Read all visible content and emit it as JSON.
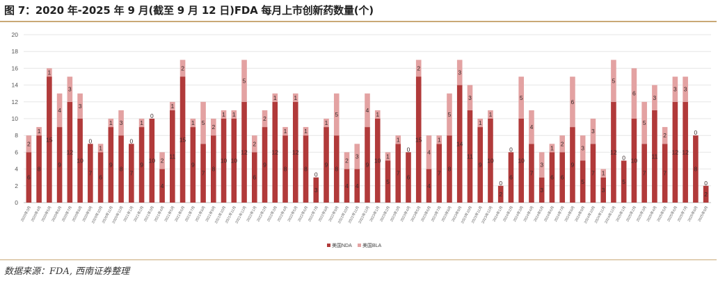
{
  "title": "图 7：2020 年-2025 年 9 月(截至 9 月 12 日)FDA 每月上市创新药数量(个)",
  "source": "数据来源：FDA, 西南证券整理",
  "colors": {
    "nda": "#b13a3a",
    "bla": "#e3a2a2",
    "accent_line": "#c9a876"
  },
  "chart_data": {
    "type": "bar",
    "stacked": true,
    "title": "",
    "xlabel": "",
    "ylabel": "",
    "ylim": [
      0,
      20
    ],
    "yticks": [
      0,
      2,
      4,
      6,
      8,
      10,
      12,
      14,
      16,
      18,
      20
    ],
    "grid": true,
    "legend_position": "bottom",
    "categories": [
      "2020年3月",
      "2020年4月",
      "2020年5月",
      "2020年6月",
      "2020年7月",
      "2020年8月",
      "2020年9月",
      "2020年10月",
      "2020年11月",
      "2020年12月",
      "2021年1月",
      "2021年2月",
      "2021年3月",
      "2021年4月",
      "2021年5月",
      "2021年6月",
      "2021年7月",
      "2021年8月",
      "2021年9月",
      "2021年10月",
      "2021年11月",
      "2021年12月",
      "2022年1月",
      "2022年2月",
      "2022年3月",
      "2022年4月",
      "2022年5月",
      "2022年6月",
      "2022年7月",
      "2022年8月",
      "2022年9月",
      "2022年10月",
      "2022年11月",
      "2022年12月",
      "2023年1月",
      "2023年2月",
      "2023年3月",
      "2023年4月",
      "2023年5月",
      "2023年6月",
      "2023年7月",
      "2023年8月",
      "2023年9月",
      "2023年10月",
      "2023年11月",
      "2023年12月",
      "2024年1月",
      "2024年2月",
      "2024年3月",
      "2024年4月",
      "2024年5月",
      "2024年6月",
      "2024年7月",
      "2024年8月",
      "2024年9月",
      "2024年10月",
      "2024年11月",
      "2024年12月",
      "2025年1月",
      "2025年2月",
      "2025年3月",
      "2025年4月",
      "2025年5月",
      "2025年6月",
      "2025年7月",
      "2025年8月",
      "2025年9月"
    ],
    "series": [
      {
        "name": "美国NDA",
        "color": "#b13a3a",
        "values": [
          6,
          8,
          15,
          9,
          12,
          10,
          7,
          6,
          9,
          8,
          7,
          9,
          10,
          4,
          11,
          15,
          9,
          7,
          8,
          10,
          10,
          12,
          6,
          9,
          12,
          8,
          12,
          8,
          3,
          9,
          8,
          4,
          4,
          9,
          10,
          5,
          7,
          6,
          15,
          4,
          7,
          8,
          14,
          11,
          9,
          10,
          2,
          6,
          10,
          7,
          3,
          6,
          6,
          9,
          5,
          7,
          3,
          12,
          5,
          10,
          7,
          11,
          7,
          12,
          12,
          8,
          2
        ]
      },
      {
        "name": "美国BLA",
        "color": "#e3a2a2",
        "values": [
          2,
          1,
          1,
          4,
          3,
          3,
          0,
          1,
          1,
          3,
          0,
          1,
          0,
          2,
          1,
          2,
          1,
          5,
          2,
          1,
          1,
          5,
          2,
          2,
          1,
          1,
          1,
          1,
          0,
          1,
          5,
          2,
          3,
          4,
          1,
          1,
          1,
          0,
          2,
          4,
          1,
          5,
          3,
          3,
          1,
          1,
          0,
          0,
          5,
          4,
          3,
          1,
          2,
          6,
          3,
          3,
          1,
          5,
          0,
          6,
          5,
          3,
          2,
          3,
          3,
          0,
          0
        ]
      }
    ]
  }
}
